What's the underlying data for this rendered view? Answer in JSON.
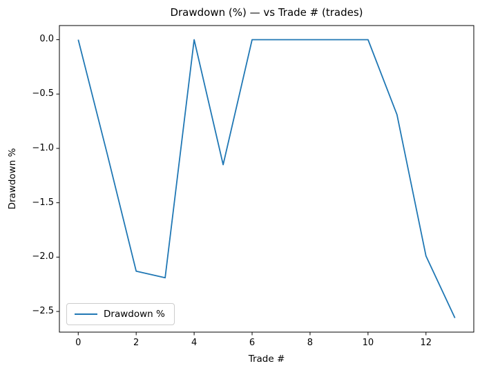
{
  "chart_data": {
    "type": "line",
    "title": "Drawdown (%) — vs Trade # (trades)",
    "xlabel": "Trade #",
    "ylabel": "Drawdown %",
    "x": [
      0,
      1,
      2,
      3,
      4,
      5,
      6,
      7,
      8,
      9,
      10,
      11,
      12,
      13
    ],
    "series": [
      {
        "name": "Drawdown %",
        "color": "#1f77b4",
        "values": [
          0.0,
          -1.05,
          -2.13,
          -2.19,
          0.0,
          -1.15,
          0.0,
          0.0,
          0.0,
          0.0,
          0.0,
          -0.69,
          -1.99,
          -2.56
        ]
      }
    ],
    "xlim": [
      -0.65,
      13.65
    ],
    "ylim": [
      -2.69,
      0.13
    ],
    "xticks": {
      "values": [
        0,
        2,
        4,
        6,
        8,
        10,
        12
      ],
      "labels": [
        "0",
        "2",
        "4",
        "6",
        "8",
        "10",
        "12"
      ]
    },
    "yticks": {
      "values": [
        0.0,
        -0.5,
        -1.0,
        -1.5,
        -2.0,
        -2.5
      ],
      "labels": [
        "0.0",
        "−0.5",
        "−1.0",
        "−1.5",
        "−2.0",
        "−2.5"
      ]
    },
    "grid": false,
    "legend": {
      "position": "lower left",
      "entries": [
        "Drawdown %"
      ]
    }
  },
  "colors": {
    "line": "#1f77b4",
    "axis": "#000000",
    "background": "#ffffff",
    "legend_border": "#cccccc"
  }
}
